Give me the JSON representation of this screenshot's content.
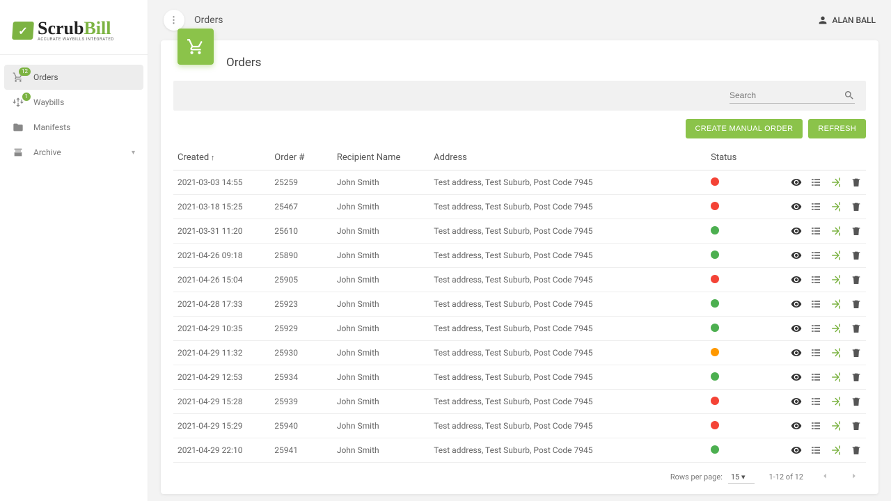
{
  "brand": {
    "name_a": "Scrub",
    "name_b": "Bill",
    "tagline": "ACCURATE WAYBILLS INTEGRATED"
  },
  "user": {
    "name": "ALAN BALL"
  },
  "breadcrumb": "Orders",
  "sidebar": {
    "items": [
      {
        "label": "Orders",
        "badge": "12",
        "active": true
      },
      {
        "label": "Waybills",
        "badge": "1",
        "active": false
      },
      {
        "label": "Manifests",
        "badge": null,
        "active": false
      },
      {
        "label": "Archive",
        "badge": null,
        "active": false,
        "expandable": true
      }
    ]
  },
  "page": {
    "title": "Orders",
    "search_placeholder": "Search",
    "buttons": {
      "create": "CREATE MANUAL ORDER",
      "refresh": "REFRESH"
    }
  },
  "table": {
    "columns": [
      "Created",
      "Order #",
      "Recipient Name",
      "Address",
      "Status"
    ],
    "sort_col": 0,
    "rows": [
      {
        "created": "2021-03-03 14:55",
        "order": "25259",
        "name": "John Smith",
        "address": "Test address, Test Suburb, Post Code 7945",
        "status_color": "#f44336"
      },
      {
        "created": "2021-03-18 15:25",
        "order": "25467",
        "name": "John Smith",
        "address": "Test address, Test Suburb, Post Code 7945",
        "status_color": "#f44336"
      },
      {
        "created": "2021-03-31 11:20",
        "order": "25610",
        "name": "John Smith",
        "address": "Test address, Test Suburb, Post Code 7945",
        "status_color": "#4caf50"
      },
      {
        "created": "2021-04-26 09:18",
        "order": "25890",
        "name": "John Smith",
        "address": "Test address, Test Suburb, Post Code 7945",
        "status_color": "#4caf50"
      },
      {
        "created": "2021-04-26 15:04",
        "order": "25905",
        "name": "John Smith",
        "address": "Test address, Test Suburb, Post Code 7945",
        "status_color": "#f44336"
      },
      {
        "created": "2021-04-28 17:33",
        "order": "25923",
        "name": "John Smith",
        "address": "Test address, Test Suburb, Post Code 7945",
        "status_color": "#4caf50"
      },
      {
        "created": "2021-04-29 10:35",
        "order": "25929",
        "name": "John Smith",
        "address": "Test address, Test Suburb, Post Code 7945",
        "status_color": "#4caf50"
      },
      {
        "created": "2021-04-29 11:32",
        "order": "25930",
        "name": "John Smith",
        "address": "Test address, Test Suburb, Post Code 7945",
        "status_color": "#ff9800"
      },
      {
        "created": "2021-04-29 12:53",
        "order": "25934",
        "name": "John Smith",
        "address": "Test address, Test Suburb, Post Code 7945",
        "status_color": "#4caf50"
      },
      {
        "created": "2021-04-29 15:28",
        "order": "25939",
        "name": "John Smith",
        "address": "Test address, Test Suburb, Post Code 7945",
        "status_color": "#f44336"
      },
      {
        "created": "2021-04-29 15:29",
        "order": "25940",
        "name": "John Smith",
        "address": "Test address, Test Suburb, Post Code 7945",
        "status_color": "#f44336"
      },
      {
        "created": "2021-04-29 22:10",
        "order": "25941",
        "name": "John Smith",
        "address": "Test address, Test Suburb, Post Code 7945",
        "status_color": "#4caf50"
      }
    ]
  },
  "pager": {
    "rows_label": "Rows per page:",
    "rows_value": "15",
    "range": "1-12 of 12"
  },
  "colors": {
    "accent": "#8bc34a",
    "red": "#f44336",
    "green": "#4caf50",
    "orange": "#ff9800"
  }
}
